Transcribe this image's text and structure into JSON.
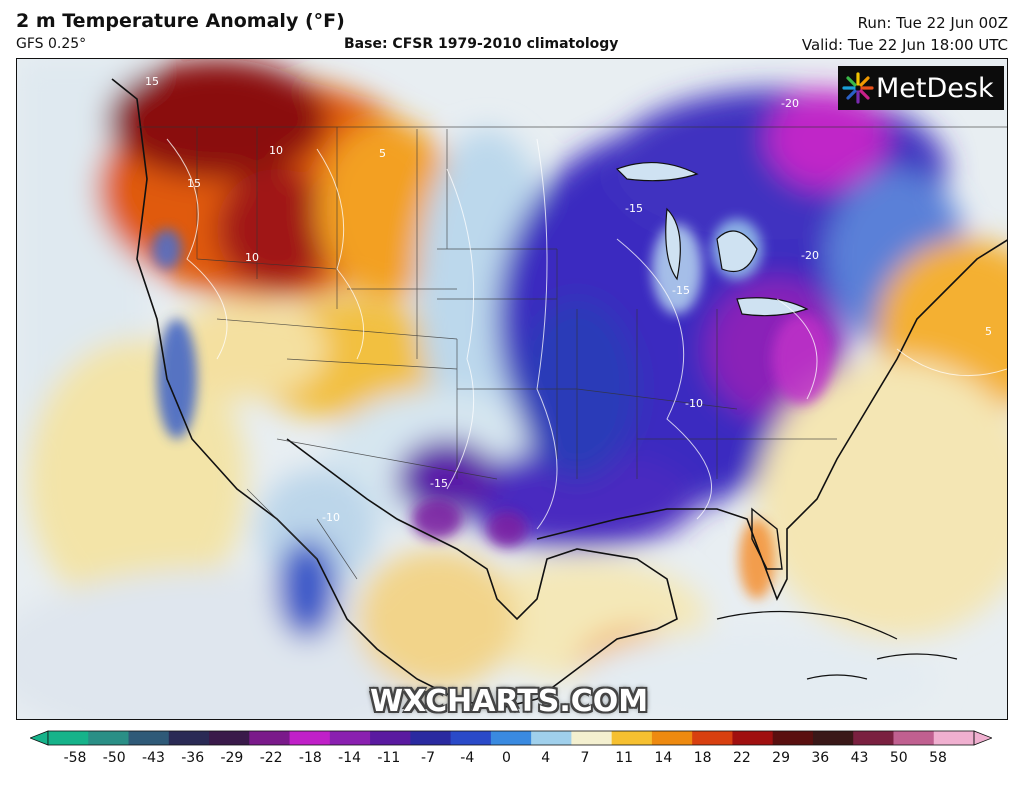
{
  "header": {
    "title": "2 m Temperature Anomaly (°F)",
    "model": "GFS 0.25°",
    "base": "Base: CFSR 1979-2010 climatology",
    "run": "Run: Tue 22 Jun 00Z",
    "valid": "Valid: Tue 22 Jun 18:00 UTC"
  },
  "logo": {
    "text": "MetDesk",
    "icon": "sunburst-icon"
  },
  "watermark": "WXCHARTS.COM",
  "colorbar": {
    "ticks": [
      "-58",
      "-50",
      "-43",
      "-36",
      "-29",
      "-22",
      "-18",
      "-14",
      "-11",
      "-7",
      "-4",
      "0",
      "4",
      "7",
      "11",
      "14",
      "18",
      "22",
      "29",
      "36",
      "43",
      "50",
      "58"
    ],
    "colors": [
      "#16b38a",
      "#2a8f86",
      "#2f5a78",
      "#2a2a55",
      "#3a1a4a",
      "#7a1a8a",
      "#c020c8",
      "#8a20b0",
      "#5a1aa0",
      "#2a2aa0",
      "#2a4ac8",
      "#3a8ae0",
      "#a0d0ec",
      "#f4f0d0",
      "#f6c030",
      "#ee8a10",
      "#d84010",
      "#a01010",
      "#5a1010",
      "#3a1818",
      "#7a2040",
      "#c06090",
      "#f0b0d0"
    ]
  },
  "contour_labels": [
    {
      "text": "15",
      "region": "pacific-northwest"
    },
    {
      "text": "15",
      "region": "idaho"
    },
    {
      "text": "10",
      "region": "montana"
    },
    {
      "text": "10",
      "region": "nevada"
    },
    {
      "text": "5",
      "region": "utah"
    },
    {
      "text": "-20",
      "region": "quebec"
    },
    {
      "text": "-15",
      "region": "great-lakes"
    },
    {
      "text": "-20",
      "region": "pennsylvania"
    },
    {
      "text": "-15",
      "region": "ohio-valley"
    },
    {
      "text": "-10",
      "region": "tennessee"
    },
    {
      "text": "-15",
      "region": "texas"
    },
    {
      "text": "-10",
      "region": "mexico-west"
    },
    {
      "text": "5",
      "region": "atlantic"
    }
  ]
}
